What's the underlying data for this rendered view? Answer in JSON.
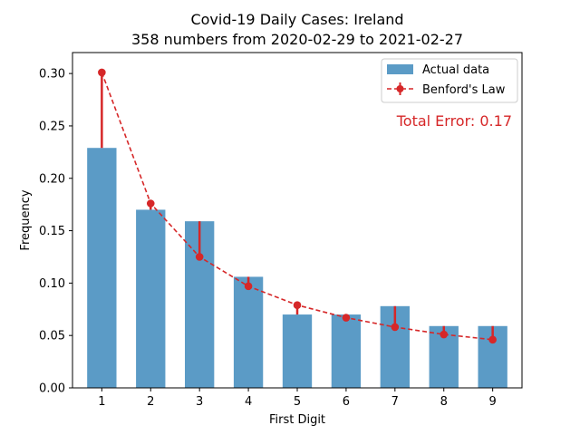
{
  "chart_data": {
    "type": "bar",
    "title": "Covid-19 Daily Cases: Ireland",
    "subtitle": "358 numbers from 2020-02-29 to 2021-02-27",
    "xlabel": "First Digit",
    "ylabel": "Frequency",
    "categories": [
      "1",
      "2",
      "3",
      "4",
      "5",
      "6",
      "7",
      "8",
      "9"
    ],
    "ylim": [
      0,
      0.32
    ],
    "yticks": [
      "0.00",
      "0.05",
      "0.10",
      "0.15",
      "0.20",
      "0.25",
      "0.30"
    ],
    "series": [
      {
        "name": "Actual data",
        "type": "bar",
        "color": "#5b9bc6",
        "values": [
          0.229,
          0.17,
          0.159,
          0.106,
          0.07,
          0.07,
          0.078,
          0.059,
          0.059
        ]
      },
      {
        "name": "Benford's Law",
        "type": "line",
        "color": "#d62728",
        "values": [
          0.301,
          0.176,
          0.125,
          0.097,
          0.079,
          0.067,
          0.058,
          0.051,
          0.046
        ]
      }
    ],
    "legend_position": "top-right",
    "annotation": "Total Error: 0.17",
    "grid": false
  }
}
